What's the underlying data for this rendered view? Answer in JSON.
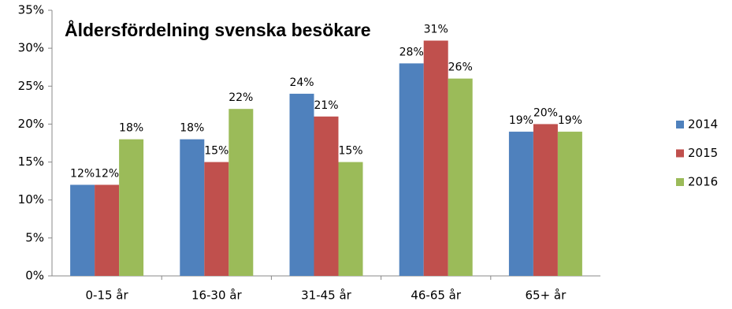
{
  "chart_data": {
    "type": "bar",
    "title": "Åldersfördelning  svenska besökare",
    "categories": [
      "0-15 år",
      "16-30 år",
      "31-45 år",
      "46-65 år",
      "65+ år"
    ],
    "series": [
      {
        "name": "2014",
        "color": "#4f81bd",
        "values": [
          12,
          18,
          24,
          28,
          19
        ],
        "value_labels": [
          "12%",
          "18%",
          "24%",
          "28%",
          "19%"
        ]
      },
      {
        "name": "2015",
        "color": "#c0504d",
        "values": [
          12,
          15,
          21,
          31,
          20
        ],
        "value_labels": [
          "12%",
          "15%",
          "21%",
          "31%",
          "20%"
        ]
      },
      {
        "name": "2016",
        "color": "#9bbb59",
        "values": [
          18,
          22,
          15,
          26,
          19
        ],
        "value_labels": [
          "18%",
          "22%",
          "15%",
          "26%",
          "19%"
        ]
      }
    ],
    "ylim": [
      0,
      35
    ],
    "yticks": [
      {
        "value": 0,
        "label": "0%"
      },
      {
        "value": 5,
        "label": "5%"
      },
      {
        "value": 10,
        "label": "10%"
      },
      {
        "value": 15,
        "label": "15%"
      },
      {
        "value": 20,
        "label": "20%"
      },
      {
        "value": 25,
        "label": "25%"
      },
      {
        "value": 30,
        "label": "30%"
      },
      {
        "value": 35,
        "label": "35%"
      }
    ],
    "grid": false,
    "legend": "right"
  }
}
